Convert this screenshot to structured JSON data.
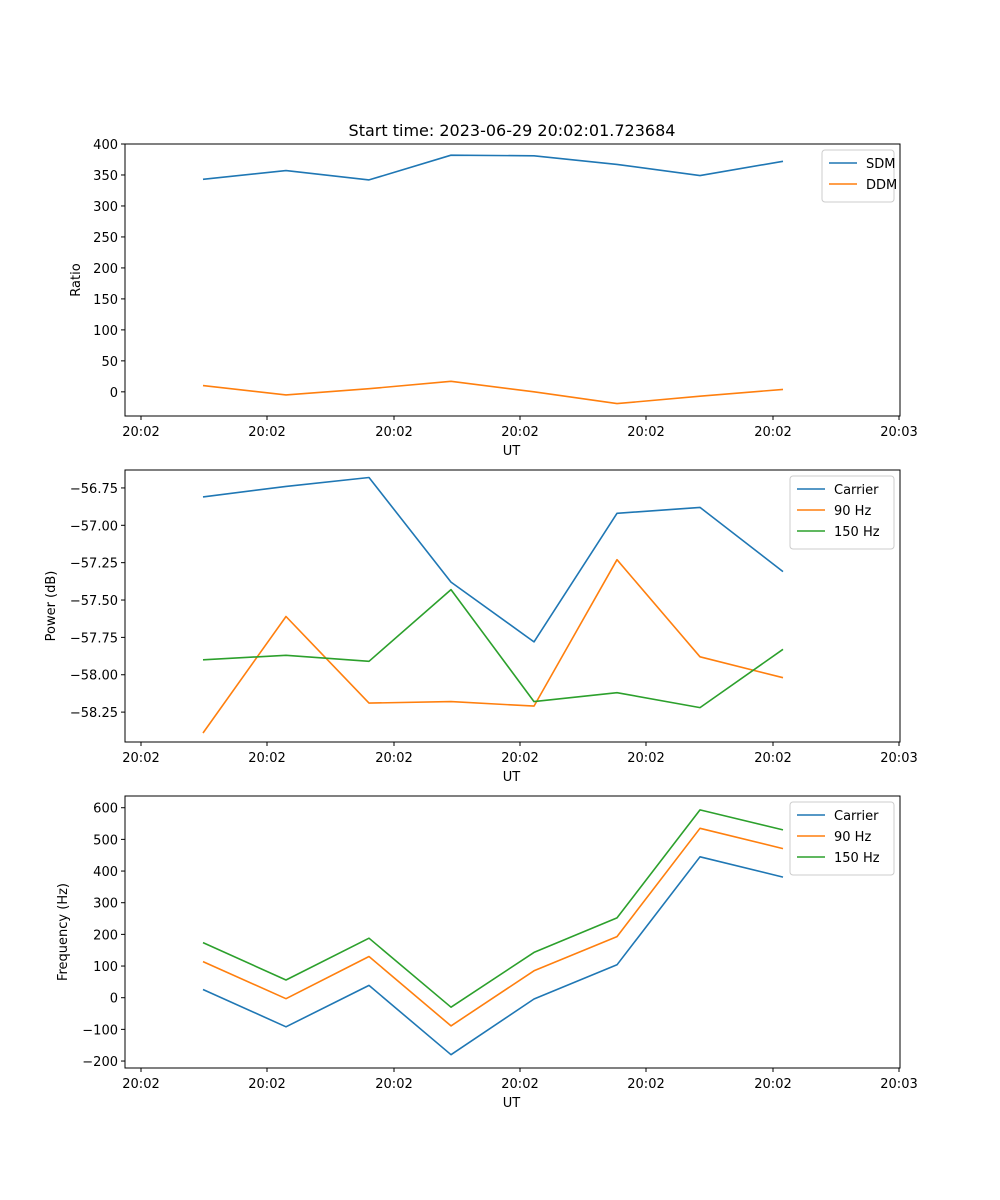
{
  "figure_title": "Start time: 2023-06-29 20:02:01.723684",
  "chart_data": [
    {
      "type": "line",
      "xlabel": "UT",
      "ylabel": "Ratio",
      "x_tick_labels": [
        "20:02",
        "20:02",
        "20:02",
        "20:02",
        "20:02",
        "20:02",
        "20:03"
      ],
      "y_ticks": [
        0,
        50,
        100,
        150,
        200,
        250,
        300,
        350,
        400
      ],
      "ylim": [
        -39,
        400
      ],
      "legend_position": "upper right",
      "series": [
        {
          "name": "SDM",
          "color": "#1f77b4",
          "values": [
            343,
            357,
            342,
            382,
            381,
            367,
            349,
            372
          ]
        },
        {
          "name": "DDM",
          "color": "#ff7f0e",
          "values": [
            10,
            -5,
            5,
            17,
            0,
            -19,
            -7,
            4
          ]
        }
      ]
    },
    {
      "type": "line",
      "xlabel": "UT",
      "ylabel": "Power (dB)",
      "x_tick_labels": [
        "20:02",
        "20:02",
        "20:02",
        "20:02",
        "20:02",
        "20:02",
        "20:03"
      ],
      "y_ticks": [
        -58.25,
        -58.0,
        -57.75,
        -57.5,
        -57.25,
        -57.0,
        -56.75
      ],
      "y_tick_labels": [
        "−58.25",
        "−58.00",
        "−57.75",
        "−57.50",
        "−57.25",
        "−57.00",
        "−56.75"
      ],
      "ylim": [
        -58.45,
        -56.63
      ],
      "legend_position": "upper right",
      "series": [
        {
          "name": "Carrier",
          "color": "#1f77b4",
          "values": [
            -56.81,
            -56.74,
            -56.68,
            -57.38,
            -57.78,
            -56.92,
            -56.88,
            -57.31
          ]
        },
        {
          "name": "90 Hz",
          "color": "#ff7f0e",
          "values": [
            -58.39,
            -57.61,
            -58.19,
            -58.18,
            -58.21,
            -57.23,
            -57.88,
            -58.02
          ]
        },
        {
          "name": "150 Hz",
          "color": "#2ca02c",
          "values": [
            -57.9,
            -57.87,
            -57.91,
            -57.43,
            -58.18,
            -58.12,
            -58.22,
            -57.83
          ]
        }
      ]
    },
    {
      "type": "line",
      "xlabel": "UT",
      "ylabel": "Frequency (Hz)",
      "x_tick_labels": [
        "20:02",
        "20:02",
        "20:02",
        "20:02",
        "20:02",
        "20:02",
        "20:03"
      ],
      "y_ticks": [
        -200,
        -100,
        0,
        100,
        200,
        300,
        400,
        500,
        600
      ],
      "y_tick_labels": [
        "−200",
        "−100",
        "0",
        "100",
        "200",
        "300",
        "400",
        "500",
        "600"
      ],
      "ylim": [
        -222,
        637
      ],
      "legend_position": "upper right",
      "series": [
        {
          "name": "Carrier",
          "color": "#1f77b4",
          "values": [
            26,
            -92,
            39,
            -180,
            -4,
            104,
            445,
            381
          ]
        },
        {
          "name": "90 Hz",
          "color": "#ff7f0e",
          "values": [
            114,
            -3,
            130,
            -89,
            85,
            193,
            535,
            471
          ]
        },
        {
          "name": "150 Hz",
          "color": "#2ca02c",
          "values": [
            174,
            56,
            188,
            -30,
            143,
            252,
            593,
            530
          ]
        }
      ]
    }
  ]
}
